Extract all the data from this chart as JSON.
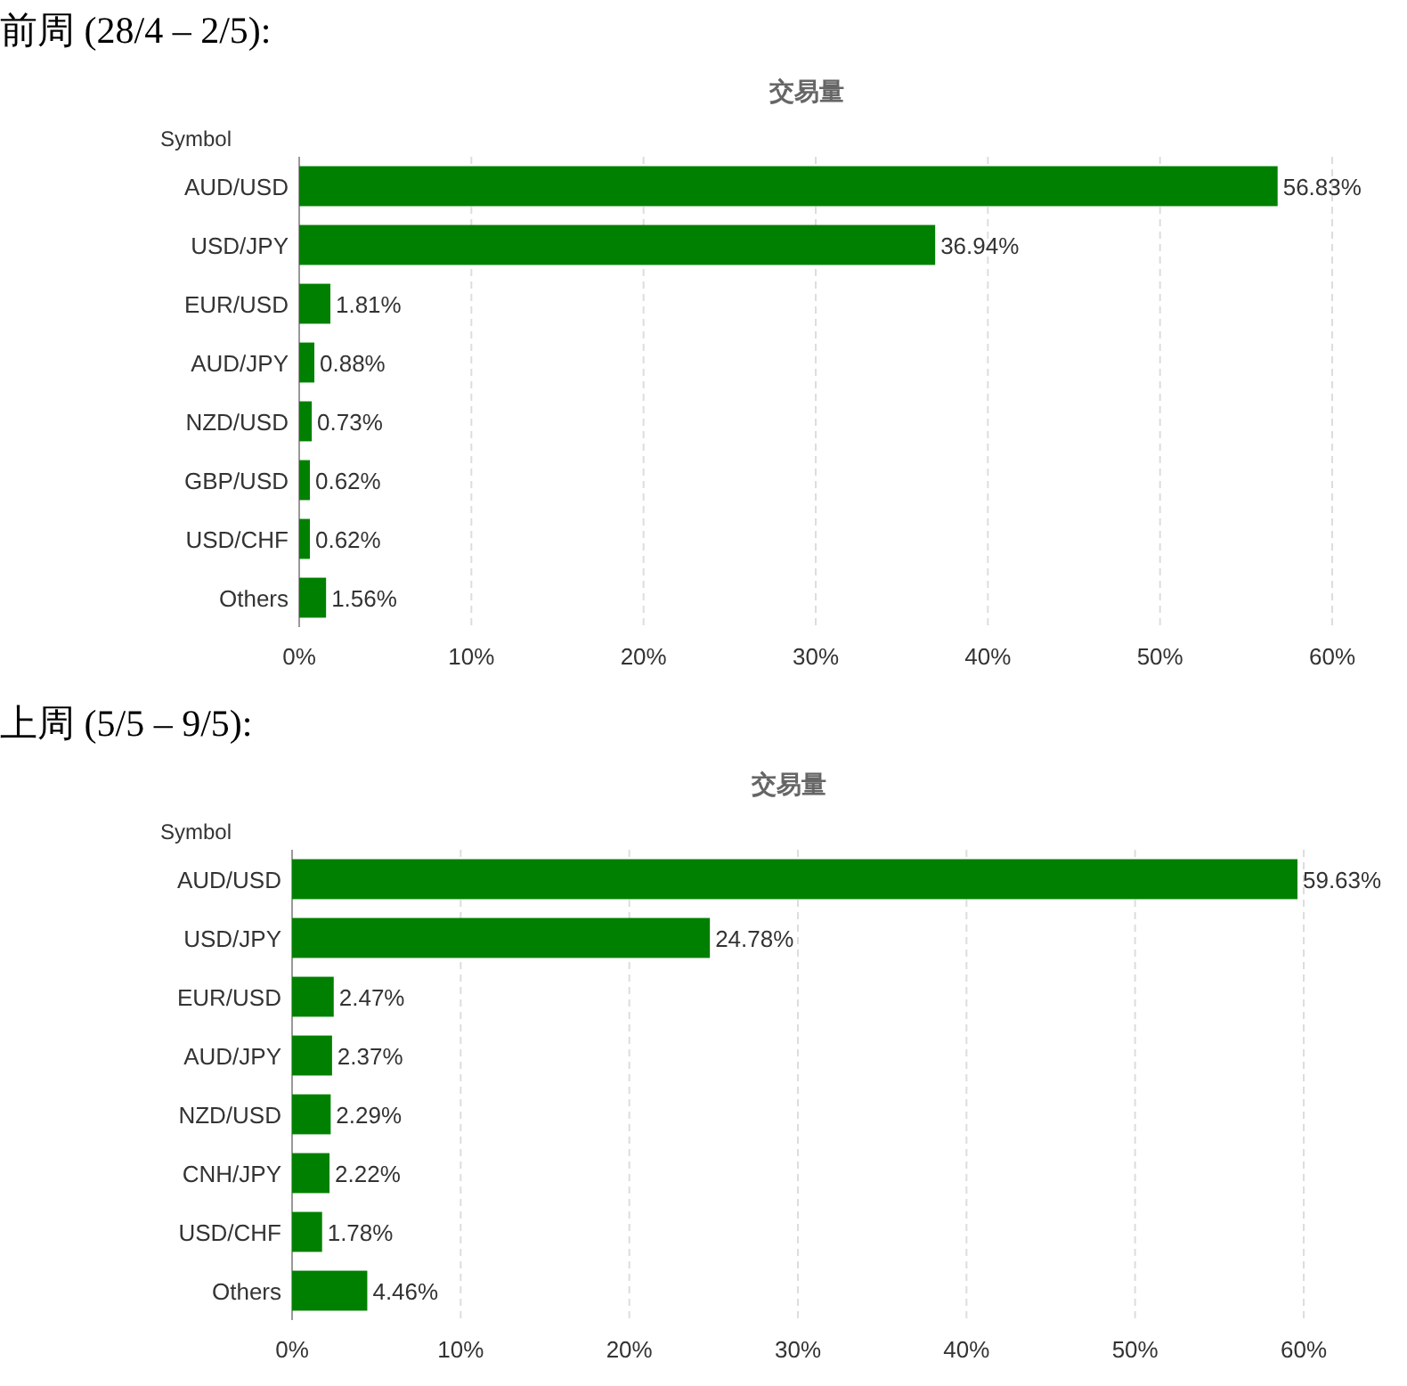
{
  "chart_data": [
    {
      "type": "bar",
      "orientation": "horizontal",
      "title": "前周 (28/4 – 2/5):",
      "subtitle": "交易量",
      "ylabel": "Symbol",
      "categories": [
        "AUD/USD",
        "USD/JPY",
        "EUR/USD",
        "AUD/JPY",
        "NZD/USD",
        "GBP/USD",
        "USD/CHF",
        "Others"
      ],
      "values": [
        56.83,
        36.94,
        1.81,
        0.88,
        0.73,
        0.62,
        0.62,
        1.56
      ],
      "value_labels": [
        "56.83%",
        "36.94%",
        "1.81%",
        "0.88%",
        "0.73%",
        "0.62%",
        "0.62%",
        "1.56%"
      ],
      "color": "#008000",
      "xlim": [
        0,
        60
      ],
      "xticks": [
        {
          "value": 0,
          "label": "0%"
        },
        {
          "value": 10,
          "label": "10%"
        },
        {
          "value": 20,
          "label": "20%"
        },
        {
          "value": 30,
          "label": "30%"
        },
        {
          "value": 40,
          "label": "40%"
        },
        {
          "value": 50,
          "label": "50%"
        },
        {
          "value": 60,
          "label": "60%"
        }
      ],
      "grid": "x"
    },
    {
      "type": "bar",
      "orientation": "horizontal",
      "title": "上周 (5/5 – 9/5):",
      "subtitle": "交易量",
      "ylabel": "Symbol",
      "categories": [
        "AUD/USD",
        "USD/JPY",
        "EUR/USD",
        "AUD/JPY",
        "NZD/USD",
        "CNH/JPY",
        "USD/CHF",
        "Others"
      ],
      "values": [
        59.63,
        24.78,
        2.47,
        2.37,
        2.29,
        2.22,
        1.78,
        4.46
      ],
      "value_labels": [
        "59.63%",
        "24.78%",
        "2.47%",
        "2.37%",
        "2.29%",
        "2.22%",
        "1.78%",
        "4.46%"
      ],
      "color": "#008000",
      "xlim": [
        0,
        60
      ],
      "xticks": [
        {
          "value": 0,
          "label": "0%"
        },
        {
          "value": 10,
          "label": "10%"
        },
        {
          "value": 20,
          "label": "20%"
        },
        {
          "value": 30,
          "label": "30%"
        },
        {
          "value": 40,
          "label": "40%"
        },
        {
          "value": 50,
          "label": "50%"
        },
        {
          "value": 60,
          "label": "60%"
        }
      ],
      "grid": "x"
    }
  ]
}
